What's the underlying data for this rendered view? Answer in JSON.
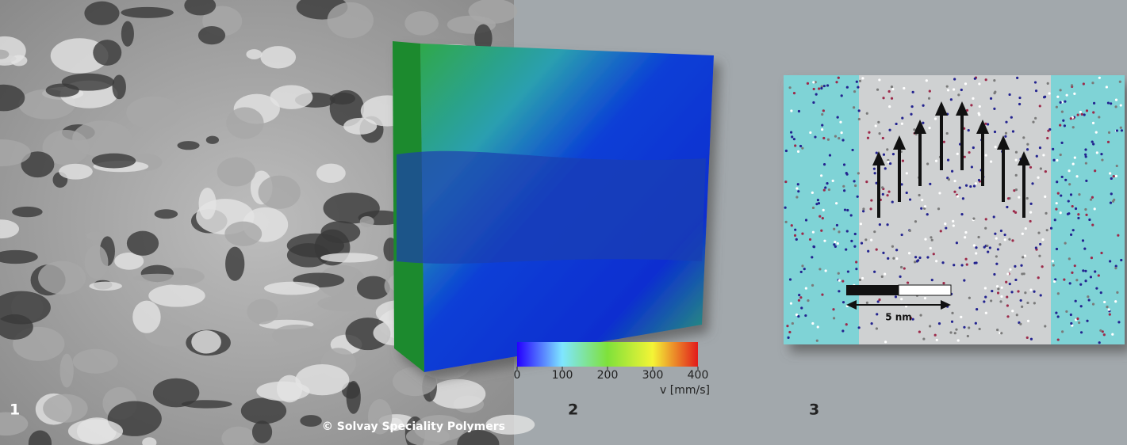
{
  "panels": [
    {
      "label": "1",
      "credit": "© Solvay Speciality Polymers"
    },
    {
      "label": "2",
      "colorbar": {
        "lim": [
          0,
          400
        ],
        "ticks": [
          0,
          100,
          200,
          300,
          400
        ],
        "label": "v [mm/s]"
      }
    },
    {
      "label": "3",
      "scale_label": "5 nm"
    }
  ]
}
